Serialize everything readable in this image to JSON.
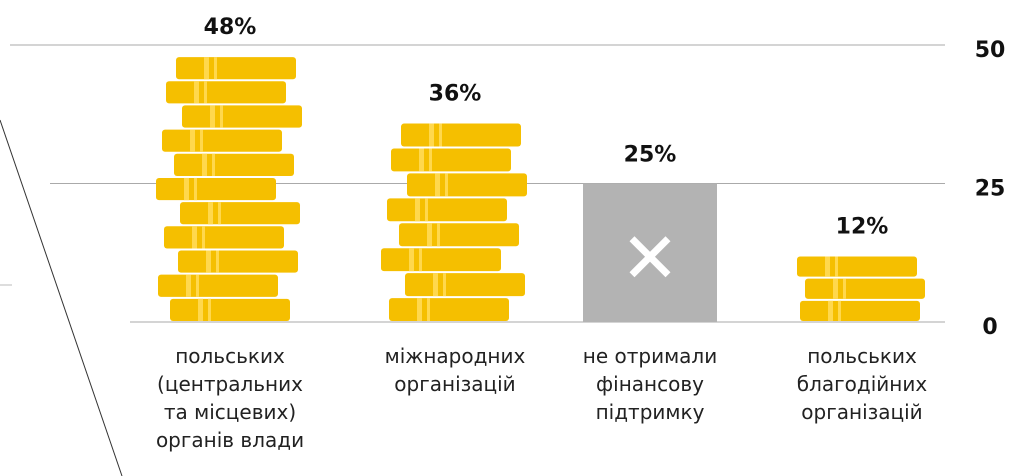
{
  "chart_data": {
    "type": "bar",
    "categories": [
      "польських (центральних та місцевих) органів влади",
      "міжнародних організацій",
      "не отримали фінансову підтримку",
      "польських благодійних організацій"
    ],
    "values": [
      48,
      36,
      25,
      12
    ],
    "value_labels": [
      "48%",
      "36%",
      "25%",
      "12%"
    ],
    "colors": [
      "#f5bf00",
      "#f5bf00",
      "#b3b3b3",
      "#f5bf00"
    ],
    "ylim": [
      0,
      50
    ],
    "yticks": [
      0,
      25,
      50
    ],
    "grid": true
  }
}
